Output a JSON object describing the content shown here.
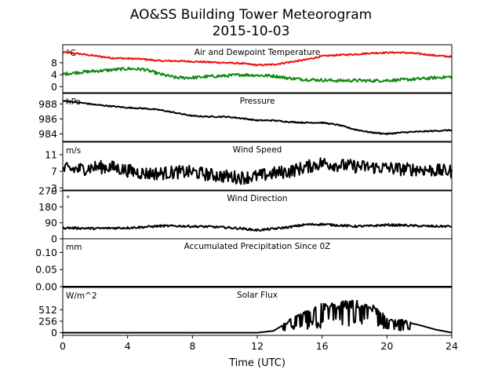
{
  "figure": {
    "title_line1": "AO&SS Building Tower Meteorogram",
    "title_line2": "2015-10-03",
    "xlabel": "Time (UTC)",
    "xticks": [
      "0",
      "4",
      "8",
      "12",
      "16",
      "20",
      "24"
    ],
    "xlim": [
      0,
      24
    ]
  },
  "chart_data": [
    {
      "type": "line",
      "title": "Air and Dewpoint Temperature",
      "unit": "°C",
      "ylim": [
        -2,
        14
      ],
      "yticks": [
        "8",
        "4",
        "0"
      ],
      "ytick_values": [
        8,
        4,
        0
      ],
      "x": [
        0,
        1,
        2,
        3,
        4,
        5,
        6,
        7,
        8,
        9,
        10,
        11,
        12,
        13,
        14,
        15,
        16,
        17,
        18,
        19,
        20,
        21,
        22,
        23,
        24
      ],
      "series": [
        {
          "color": "#ee1111",
          "noise": 0.25,
          "values": [
            11.5,
            11.0,
            10.3,
            9.6,
            9.4,
            9.2,
            8.6,
            8.6,
            8.4,
            8.2,
            8.0,
            7.8,
            7.2,
            7.4,
            8.2,
            9.0,
            10.2,
            10.6,
            10.8,
            11.2,
            11.4,
            11.4,
            11.0,
            10.4,
            10.0
          ]
        },
        {
          "color": "#118811",
          "noise": 0.5,
          "values": [
            4.2,
            4.8,
            5.2,
            5.6,
            6.0,
            5.8,
            4.2,
            3.0,
            3.0,
            3.4,
            3.6,
            4.0,
            3.8,
            3.6,
            2.8,
            2.4,
            2.2,
            2.0,
            2.1,
            2.0,
            2.1,
            2.3,
            2.6,
            3.0,
            3.3
          ]
        }
      ]
    },
    {
      "type": "line",
      "title": "Pressure",
      "unit": "hPa",
      "ylim": [
        983.0,
        989.4
      ],
      "yticks": [
        "988",
        "986",
        "984"
      ],
      "ytick_values": [
        988,
        986,
        984
      ],
      "x": [
        0,
        1,
        2,
        3,
        4,
        5,
        6,
        7,
        8,
        9,
        10,
        11,
        12,
        13,
        14,
        15,
        16,
        17,
        18,
        19,
        20,
        21,
        22,
        23,
        24
      ],
      "series": [
        {
          "color": "#000000",
          "noise": 0.08,
          "values": [
            988.4,
            988.2,
            987.9,
            987.7,
            987.5,
            987.4,
            987.2,
            986.8,
            986.4,
            986.3,
            986.3,
            986.1,
            985.8,
            985.8,
            985.6,
            985.5,
            985.5,
            985.2,
            984.6,
            984.2,
            984.0,
            984.2,
            984.3,
            984.4,
            984.5
          ]
        }
      ]
    },
    {
      "type": "line",
      "title": "Wind Speed",
      "unit": "m/s",
      "ylim": [
        2.5,
        14
      ],
      "yticks": [
        "11",
        "7",
        "3"
      ],
      "ytick_values": [
        11,
        7,
        3
      ],
      "x": [
        0,
        1,
        2,
        3,
        4,
        5,
        6,
        7,
        8,
        9,
        10,
        11,
        12,
        13,
        14,
        15,
        16,
        17,
        18,
        19,
        20,
        21,
        22,
        23,
        24
      ],
      "series": [
        {
          "color": "#000000",
          "noise": 1.6,
          "values": [
            7.5,
            7.5,
            8.0,
            8.0,
            7.2,
            6.5,
            6.5,
            6.8,
            6.8,
            6.2,
            5.8,
            5.5,
            5.8,
            6.5,
            7.0,
            8.0,
            9.0,
            8.5,
            8.2,
            8.0,
            7.8,
            7.5,
            7.5,
            7.2,
            7.0
          ]
        }
      ]
    },
    {
      "type": "line",
      "title": "Wind Direction",
      "unit": "°",
      "ylim": [
        0,
        270
      ],
      "yticks": [
        "270",
        "180",
        "90",
        "0"
      ],
      "ytick_values": [
        270,
        180,
        90,
        0
      ],
      "x": [
        0,
        1,
        2,
        3,
        4,
        5,
        6,
        7,
        8,
        9,
        10,
        11,
        12,
        13,
        14,
        15,
        16,
        17,
        18,
        19,
        20,
        21,
        22,
        23,
        24
      ],
      "series": [
        {
          "color": "#000000",
          "noise": 6,
          "values": [
            62,
            60,
            58,
            60,
            62,
            66,
            72,
            72,
            70,
            68,
            64,
            58,
            48,
            56,
            66,
            80,
            82,
            76,
            70,
            72,
            78,
            76,
            72,
            70,
            70
          ]
        }
      ]
    },
    {
      "type": "line",
      "title": "Accumulated Precipitation Since 0Z",
      "unit": "mm",
      "ylim": [
        0,
        0.14
      ],
      "yticks": [
        "0.10",
        "0.05",
        "0.00"
      ],
      "ytick_values": [
        0.1,
        0.05,
        0.0
      ],
      "x": [
        0,
        24
      ],
      "series": [
        {
          "color": "#000000",
          "noise": 0,
          "values": [
            0,
            0
          ]
        }
      ]
    },
    {
      "type": "line",
      "title": "Solar Flux",
      "unit": "W/m^2",
      "ylim": [
        -60,
        1010
      ],
      "yticks": [
        "512",
        "256",
        "0"
      ],
      "ytick_values": [
        512,
        256,
        0
      ],
      "x": [
        0,
        1,
        2,
        3,
        4,
        5,
        6,
        7,
        8,
        9,
        10,
        11,
        12,
        13,
        14,
        15,
        16,
        17,
        18,
        19,
        20,
        21,
        22,
        23,
        24
      ],
      "series": [
        {
          "color": "#000000",
          "noise": 0,
          "spiky": true,
          "values": [
            0,
            0,
            0,
            0,
            0,
            0,
            0,
            0,
            0,
            0,
            0,
            0,
            0,
            40,
            260,
            430,
            580,
            610,
            640,
            580,
            310,
            250,
            170,
            70,
            0
          ]
        }
      ]
    }
  ]
}
